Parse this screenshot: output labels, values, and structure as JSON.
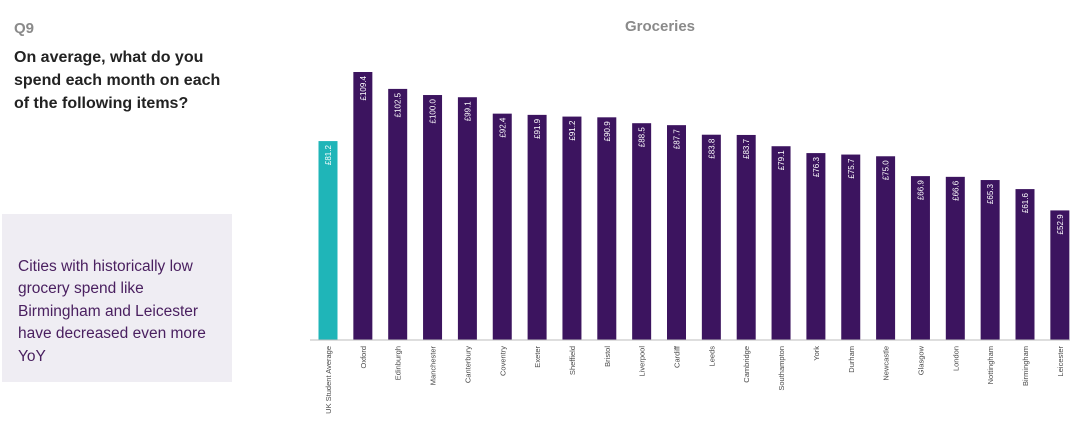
{
  "question": {
    "number": "Q9",
    "text": "On average, what do you spend each month on each of the following items?"
  },
  "callout": {
    "text": "Cities with historically low grocery spend like Birmingham and Leicester have decreased even more YoY"
  },
  "colors": {
    "highlight_bar": "#1fb5b8",
    "bar": "#3c145f",
    "callout_bg": "#efedf3",
    "callout_text": "#4a2060"
  },
  "chart_data": {
    "type": "bar",
    "title": "Groceries",
    "xlabel": "",
    "ylabel": "",
    "ylim": [
      0,
      115
    ],
    "grid": false,
    "categories": [
      "UK Student Average",
      "Oxford",
      "Edinburgh",
      "Manchester",
      "Canterbury",
      "Coventry",
      "Exeter",
      "Sheffield",
      "Bristol",
      "Liverpool",
      "Cardiff",
      "Leeds",
      "Cambridge",
      "Southampton",
      "York",
      "Durham",
      "Newcastle",
      "Glasgow",
      "London",
      "Nottingham",
      "Birmingham",
      "Leicester"
    ],
    "values": [
      81.2,
      109.4,
      102.5,
      100.0,
      99.1,
      92.4,
      91.9,
      91.2,
      90.9,
      88.5,
      87.7,
      83.8,
      83.7,
      79.1,
      76.3,
      75.7,
      75.0,
      66.9,
      66.6,
      65.3,
      61.6,
      52.9
    ],
    "value_labels": [
      "£81.2",
      "£109.4",
      "£102.5",
      "£100.0",
      "£99.1",
      "£92.4",
      "£91.9",
      "£91.2",
      "£90.9",
      "£88.5",
      "£87.7",
      "£83.8",
      "£83.7",
      "£79.1",
      "£76.3",
      "£75.7",
      "£75.0",
      "£66.9",
      "£66.6",
      "£65.3",
      "£61.6",
      "£52.9"
    ],
    "highlight_category": "UK Student Average"
  }
}
